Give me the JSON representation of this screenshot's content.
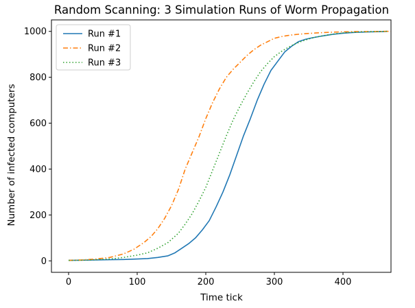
{
  "chart_data": {
    "type": "line",
    "title": "Random Scanning: 3 Simulation Runs of Worm Propagation",
    "xlabel": "Time tick",
    "ylabel": "Number of infected computers",
    "xlim": [
      -25,
      470
    ],
    "ylim": [
      -50,
      1050
    ],
    "xticks": [
      0,
      100,
      200,
      300,
      400
    ],
    "yticks": [
      0,
      200,
      400,
      600,
      800,
      1000
    ],
    "grid": false,
    "legend_position": "top-left",
    "series": [
      {
        "name": "Run #1",
        "color": "#1f77b4",
        "style": "solid",
        "x": [
          0,
          20,
          40,
          60,
          80,
          100,
          115,
          130,
          145,
          155,
          165,
          175,
          185,
          195,
          205,
          215,
          225,
          235,
          245,
          255,
          265,
          275,
          285,
          295,
          305,
          315,
          325,
          335,
          345,
          355,
          370,
          385,
          400,
          420,
          440,
          460,
          465
        ],
        "y": [
          2,
          3,
          4,
          5,
          6,
          8,
          10,
          15,
          22,
          35,
          55,
          75,
          100,
          135,
          175,
          235,
          300,
          375,
          460,
          545,
          620,
          700,
          770,
          830,
          870,
          910,
          935,
          955,
          965,
          972,
          980,
          987,
          992,
          996,
          998,
          999,
          1000
        ]
      },
      {
        "name": "Run #2",
        "color": "#ff7f0e",
        "style": "dashdot",
        "x": [
          0,
          20,
          40,
          60,
          80,
          95,
          110,
          120,
          130,
          140,
          150,
          160,
          170,
          180,
          190,
          200,
          210,
          220,
          230,
          240,
          250,
          260,
          270,
          280,
          290,
          300,
          310,
          320,
          330,
          345,
          360,
          380,
          400,
          420,
          440,
          460,
          470
        ],
        "y": [
          2,
          4,
          8,
          15,
          30,
          50,
          80,
          105,
          140,
          185,
          240,
          310,
          400,
          470,
          540,
          620,
          690,
          750,
          800,
          835,
          865,
          895,
          920,
          940,
          955,
          970,
          977,
          982,
          986,
          990,
          993,
          996,
          998,
          999,
          999,
          1000,
          1000
        ]
      },
      {
        "name": "Run #3",
        "color": "#2ca02c",
        "style": "dotted",
        "x": [
          0,
          20,
          40,
          60,
          80,
          100,
          115,
          130,
          145,
          160,
          170,
          180,
          190,
          200,
          210,
          220,
          230,
          240,
          250,
          260,
          270,
          280,
          290,
          300,
          310,
          320,
          330,
          340,
          350,
          360,
          375,
          390,
          405,
          420,
          440,
          460,
          465
        ],
        "y": [
          2,
          3,
          5,
          8,
          15,
          25,
          35,
          55,
          80,
          120,
          160,
          205,
          260,
          320,
          395,
          470,
          545,
          615,
          675,
          730,
          780,
          825,
          860,
          890,
          912,
          930,
          945,
          957,
          967,
          975,
          983,
          990,
          995,
          997,
          999,
          1000,
          1000
        ]
      }
    ]
  }
}
